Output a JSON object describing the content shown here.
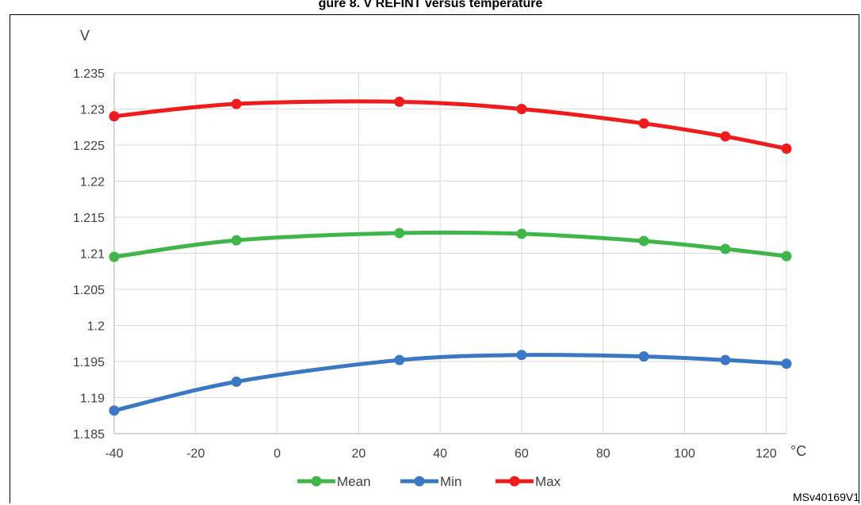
{
  "figure": {
    "partial_title": "gure 8. V     REFINT   versus temperature",
    "reference_code": "MSv40169V1"
  },
  "chart_data": {
    "type": "line",
    "title": "",
    "xlabel": "°C",
    "ylabel": "V",
    "x": [
      -40,
      -10,
      30,
      60,
      90,
      110,
      125
    ],
    "xlim": [
      -40,
      125
    ],
    "ylim": [
      1.185,
      1.235
    ],
    "x_ticks": [
      "-40",
      "-20",
      "0",
      "20",
      "40",
      "60",
      "80",
      "100",
      "120"
    ],
    "y_ticks": [
      "1.185",
      "1.19",
      "1.195",
      "1.2",
      "1.205",
      "1.21",
      "1.215",
      "1.22",
      "1.225",
      "1.23",
      "1.235"
    ],
    "grid": true,
    "legend_position": "bottom",
    "series": [
      {
        "name": "Mean",
        "color": "#3fb54a",
        "values": [
          1.2095,
          1.2118,
          1.2128,
          1.2127,
          1.2117,
          1.2106,
          1.2096
        ]
      },
      {
        "name": "Min",
        "color": "#3a78c3",
        "values": [
          1.1882,
          1.1922,
          1.1952,
          1.1959,
          1.1957,
          1.1952,
          1.1947
        ]
      },
      {
        "name": "Max",
        "color": "#ee1c1c",
        "values": [
          1.229,
          1.2307,
          1.231,
          1.23,
          1.228,
          1.2262,
          1.2245
        ]
      }
    ]
  }
}
